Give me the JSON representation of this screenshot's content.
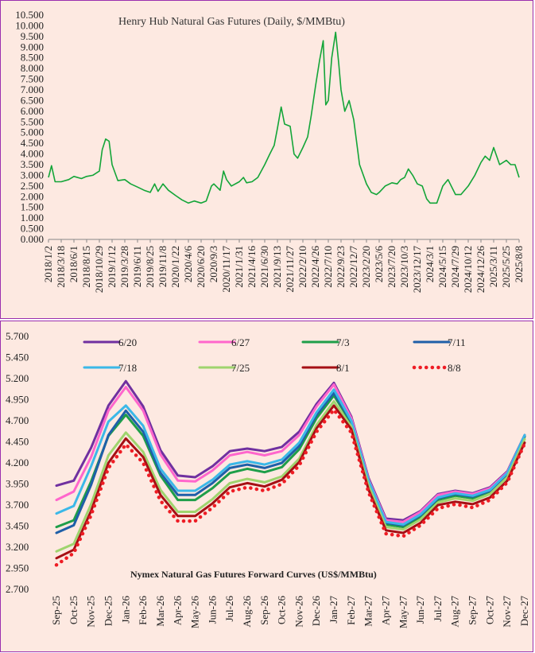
{
  "chart_data": [
    {
      "type": "line",
      "title": "Henry Hub Natural Gas Futures (Daily, $/MMBtu)",
      "xlabel": "",
      "ylabel": "",
      "ylim": [
        0,
        10.5
      ],
      "y_ticks": [
        "0.000",
        "0.500",
        "1.000",
        "1.500",
        "2.000",
        "2.500",
        "3.000",
        "3.500",
        "4.000",
        "4.500",
        "5.000",
        "5.500",
        "6.000",
        "6.500",
        "7.000",
        "7.500",
        "8.000",
        "8.500",
        "9.000",
        "9.500",
        "10.000",
        "10.500"
      ],
      "x_tick_labels": [
        "2018/1/2",
        "2018/3/18",
        "2018/6/1",
        "2018/8/15",
        "2018/10/29",
        "2019/1/12",
        "2019/3/28",
        "2019/6/11",
        "2019/8/25",
        "2019/11/8",
        "2020/1/22",
        "2020/4/6",
        "2020/6/20",
        "2020/9/3",
        "2020/11/17",
        "2021/1/31",
        "2021/4/16",
        "2021/6/30",
        "2021/9/13",
        "2021/11/27",
        "2022/2/10",
        "2022/4/26",
        "2022/7/10",
        "2022/9/23",
        "2022/12/7",
        "2023/2/20",
        "2023/5/6",
        "2023/7/20",
        "2023/10/3",
        "2023/12/17",
        "2024/3/1",
        "2024/5/15",
        "2024/7/29",
        "2024/10/12",
        "2024/12/26",
        "2025/3/11",
        "2025/5/25",
        "2025/8/8"
      ],
      "grid": false,
      "legend": "none",
      "series": [
        {
          "color": "#13a538",
          "x": [
            "2018/1/2",
            "2018/1/20",
            "2018/2/10",
            "2018/3/18",
            "2018/5/1",
            "2018/6/1",
            "2018/7/15",
            "2018/8/15",
            "2018/9/20",
            "2018/10/29",
            "2018/11/15",
            "2018/12/5",
            "2018/12/25",
            "2019/1/12",
            "2019/2/15",
            "2019/3/28",
            "2019/5/1",
            "2019/6/11",
            "2019/7/20",
            "2019/8/25",
            "2019/9/20",
            "2019/10/10",
            "2019/11/8",
            "2019/12/10",
            "2020/1/22",
            "2020/2/28",
            "2020/4/6",
            "2020/5/10",
            "2020/6/20",
            "2020/7/20",
            "2020/8/20",
            "2020/9/3",
            "2020/10/10",
            "2020/10/30",
            "2020/11/17",
            "2020/12/15",
            "2021/1/31",
            "2021/2/25",
            "2021/3/15",
            "2021/4/16",
            "2021/5/20",
            "2021/6/30",
            "2021/7/30",
            "2021/8/25",
            "2021/9/13",
            "2021/10/5",
            "2021/10/25",
            "2021/11/27",
            "2021/12/20",
            "2022/1/10",
            "2022/2/10",
            "2022/3/10",
            "2022/3/31",
            "2022/4/26",
            "2022/5/20",
            "2022/6/10",
            "2022/6/25",
            "2022/7/10",
            "2022/7/30",
            "2022/8/22",
            "2022/9/10",
            "2022/9/23",
            "2022/10/15",
            "2022/11/10",
            "2022/12/7",
            "2023/1/10",
            "2023/2/20",
            "2023/3/20",
            "2023/4/20",
            "2023/5/6",
            "2023/6/10",
            "2023/7/20",
            "2023/8/20",
            "2023/9/10",
            "2023/10/3",
            "2023/10/25",
            "2023/11/20",
            "2023/12/17",
            "2024/1/15",
            "2024/2/10",
            "2024/3/1",
            "2024/4/10",
            "2024/5/15",
            "2024/6/15",
            "2024/7/29",
            "2024/8/30",
            "2024/10/12",
            "2024/11/20",
            "2024/12/26",
            "2025/1/20",
            "2025/2/15",
            "2025/3/11",
            "2025/4/15",
            "2025/5/25",
            "2025/6/20",
            "2025/7/15",
            "2025/8/8"
          ],
          "values": [
            2.9,
            3.45,
            2.7,
            2.7,
            2.8,
            2.95,
            2.85,
            2.95,
            3.0,
            3.2,
            4.2,
            4.7,
            4.6,
            3.5,
            2.75,
            2.8,
            2.6,
            2.45,
            2.3,
            2.2,
            2.6,
            2.25,
            2.6,
            2.3,
            2.05,
            1.85,
            1.7,
            1.8,
            1.7,
            1.8,
            2.5,
            2.6,
            2.3,
            3.2,
            2.8,
            2.5,
            2.7,
            2.9,
            2.65,
            2.7,
            2.9,
            3.5,
            4.0,
            4.4,
            5.2,
            6.2,
            5.4,
            5.3,
            4.0,
            3.8,
            4.3,
            4.8,
            5.8,
            7.2,
            8.4,
            9.3,
            6.3,
            6.5,
            8.5,
            9.7,
            8.2,
            7.0,
            6.0,
            6.5,
            5.6,
            3.5,
            2.6,
            2.2,
            2.1,
            2.2,
            2.5,
            2.65,
            2.6,
            2.8,
            2.9,
            3.3,
            3.0,
            2.6,
            2.5,
            1.9,
            1.7,
            1.7,
            2.5,
            2.8,
            2.1,
            2.1,
            2.5,
            3.0,
            3.6,
            3.9,
            3.7,
            4.3,
            3.5,
            3.7,
            3.5,
            3.5,
            2.9
          ]
        }
      ]
    },
    {
      "type": "line",
      "title": "Nymex  Natural  Gas  Futures  Forward   Curves  (US$/MMBtu)",
      "xlabel": "",
      "ylabel": "",
      "ylim": [
        2.7,
        5.7
      ],
      "y_ticks": [
        "2.700",
        "2.950",
        "3.200",
        "3.450",
        "3.700",
        "3.950",
        "4.200",
        "4.450",
        "4.700",
        "4.950",
        "5.200",
        "5.450",
        "5.700"
      ],
      "categories": [
        "Sep-25",
        "Oct-25",
        "Nov-25",
        "Dec-25",
        "Jan-26",
        "Feb-26",
        "Mar-26",
        "Apr-26",
        "May-26",
        "Jun-26",
        "Jul-26",
        "Aug-26",
        "Sep-26",
        "Oct-26",
        "Nov-26",
        "Dec-26",
        "Jan-27",
        "Feb-27",
        "Mar-27",
        "Apr-27",
        "May-27",
        "Jun-27",
        "Jul-27",
        "Aug-27",
        "Sep-27",
        "Oct-27",
        "Nov-27",
        "Dec-27"
      ],
      "grid": false,
      "legend": "top",
      "series": [
        {
          "name": "6/20",
          "color": "#7030a0",
          "dotted": false,
          "values": [
            3.93,
            3.99,
            4.38,
            4.88,
            5.17,
            4.87,
            4.35,
            4.05,
            4.03,
            4.16,
            4.34,
            4.37,
            4.34,
            4.39,
            4.57,
            4.9,
            5.15,
            4.75,
            4.02,
            3.54,
            3.52,
            3.63,
            3.83,
            3.87,
            3.84,
            3.91,
            4.1,
            4.53
          ]
        },
        {
          "name": "6/27",
          "color": "#ff66cc",
          "dotted": false,
          "values": [
            3.76,
            3.86,
            4.27,
            4.82,
            5.1,
            4.82,
            4.3,
            3.99,
            3.98,
            4.11,
            4.29,
            4.33,
            4.29,
            4.34,
            4.53,
            4.87,
            5.13,
            4.73,
            4.0,
            3.52,
            3.5,
            3.62,
            3.82,
            3.86,
            3.83,
            3.9,
            4.09,
            4.52
          ]
        },
        {
          "name": "7/3",
          "color": "#1f9e49",
          "dotted": false,
          "values": [
            3.44,
            3.52,
            3.98,
            4.52,
            4.77,
            4.52,
            4.05,
            3.76,
            3.76,
            3.9,
            4.08,
            4.13,
            4.09,
            4.15,
            4.36,
            4.73,
            5.0,
            4.67,
            3.96,
            3.47,
            3.44,
            3.56,
            3.76,
            3.81,
            3.78,
            3.86,
            4.06,
            4.51
          ]
        },
        {
          "name": "7/11",
          "color": "#1f5fa8",
          "dotted": false,
          "values": [
            3.37,
            3.46,
            3.94,
            4.53,
            4.82,
            4.57,
            4.08,
            3.82,
            3.82,
            3.96,
            4.14,
            4.18,
            4.14,
            4.2,
            4.4,
            4.77,
            5.03,
            4.69,
            3.98,
            3.49,
            3.46,
            3.58,
            3.78,
            3.83,
            3.8,
            3.87,
            4.07,
            4.52
          ]
        },
        {
          "name": "7/18",
          "color": "#3bb8e8",
          "dotted": false,
          "values": [
            3.6,
            3.69,
            4.16,
            4.69,
            4.88,
            4.64,
            4.13,
            3.87,
            3.87,
            4.0,
            4.18,
            4.22,
            4.18,
            4.24,
            4.44,
            4.8,
            5.07,
            4.7,
            3.99,
            3.5,
            3.47,
            3.59,
            3.79,
            3.84,
            3.81,
            3.88,
            4.08,
            4.53
          ]
        },
        {
          "name": "7/25",
          "color": "#9fd46e",
          "dotted": false,
          "values": [
            3.15,
            3.24,
            3.71,
            4.29,
            4.56,
            4.33,
            3.88,
            3.62,
            3.62,
            3.77,
            3.96,
            4.01,
            3.97,
            4.04,
            4.25,
            4.65,
            4.93,
            4.63,
            3.93,
            3.44,
            3.41,
            3.53,
            3.73,
            3.78,
            3.75,
            3.83,
            4.03,
            4.48
          ]
        },
        {
          "name": "8/1",
          "color": "#a50f14",
          "dotted": false,
          "values": [
            3.07,
            3.17,
            3.63,
            4.2,
            4.49,
            4.27,
            3.82,
            3.57,
            3.57,
            3.72,
            3.91,
            3.96,
            3.92,
            4.0,
            4.21,
            4.61,
            4.88,
            4.6,
            3.88,
            3.4,
            3.37,
            3.49,
            3.7,
            3.74,
            3.71,
            3.79,
            3.99,
            4.44
          ]
        },
        {
          "name": "8/8",
          "color": "#ee1c24",
          "dotted": true,
          "values": [
            2.99,
            3.13,
            3.58,
            4.14,
            4.42,
            4.2,
            3.75,
            3.51,
            3.51,
            3.67,
            3.86,
            3.91,
            3.87,
            3.95,
            4.17,
            4.57,
            4.83,
            4.56,
            3.85,
            3.36,
            3.33,
            3.46,
            3.66,
            3.71,
            3.67,
            3.76,
            3.97,
            4.43
          ]
        }
      ]
    }
  ]
}
